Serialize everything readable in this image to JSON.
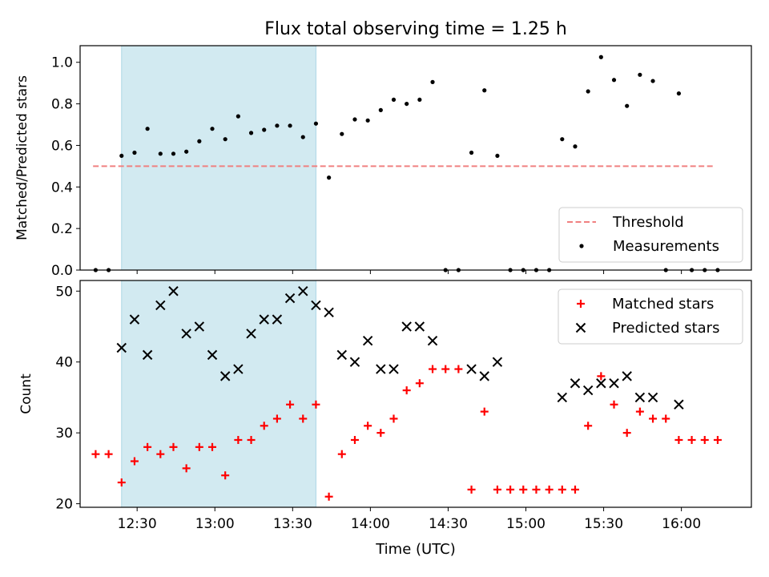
{
  "title": "Flux total observing time = 1.25 h",
  "xlabel": "Time (UTC)",
  "colors": {
    "shade": "#add8e6",
    "threshold": "#f08080",
    "matched": "#ff0000",
    "predicted": "#000000",
    "measurement": "#000000"
  },
  "chart_data": [
    {
      "type": "scatter",
      "ylabel": "Matched/Predicted stars",
      "ylim": [
        0,
        1.08
      ],
      "yticks": [
        "0.0",
        "0.2",
        "0.4",
        "0.6",
        "0.8",
        "1.0"
      ],
      "ytick_values": [
        0,
        0.2,
        0.4,
        0.6,
        0.8,
        1.0
      ],
      "xticks": [
        "12:30",
        "13:00",
        "13:30",
        "14:00",
        "14:30",
        "15:00",
        "15:30",
        "16:00"
      ],
      "xtick_values": [
        "12:30",
        "13:00",
        "13:30",
        "14:00",
        "14:30",
        "15:00",
        "15:30",
        "16:00"
      ],
      "xlim": [
        "12:08",
        "16:27"
      ],
      "shaded_region": [
        "12:24",
        "13:39"
      ],
      "threshold": {
        "name": "Threshold",
        "value": 0.5,
        "x_range": [
          "12:13",
          "16:13"
        ]
      },
      "legend": {
        "placement": "lower-right",
        "entries": [
          "Threshold",
          "Measurements"
        ]
      },
      "series": [
        {
          "name": "Measurements",
          "marker": "dot",
          "points": [
            [
              "12:14",
              0.0
            ],
            [
              "12:19",
              0.0
            ],
            [
              "12:24",
              0.55
            ],
            [
              "12:29",
              0.565
            ],
            [
              "12:34",
              0.68
            ],
            [
              "12:39",
              0.56
            ],
            [
              "12:44",
              0.56
            ],
            [
              "12:49",
              0.57
            ],
            [
              "12:54",
              0.62
            ],
            [
              "12:59",
              0.68
            ],
            [
              "13:04",
              0.63
            ],
            [
              "13:09",
              0.74
            ],
            [
              "13:14",
              0.66
            ],
            [
              "13:19",
              0.675
            ],
            [
              "13:24",
              0.695
            ],
            [
              "13:29",
              0.695
            ],
            [
              "13:34",
              0.64
            ],
            [
              "13:39",
              0.705
            ],
            [
              "13:44",
              0.445
            ],
            [
              "13:49",
              0.655
            ],
            [
              "13:54",
              0.725
            ],
            [
              "13:59",
              0.72
            ],
            [
              "14:04",
              0.77
            ],
            [
              "14:09",
              0.82
            ],
            [
              "14:14",
              0.8
            ],
            [
              "14:19",
              0.82
            ],
            [
              "14:24",
              0.905
            ],
            [
              "14:29",
              0.0
            ],
            [
              "14:34",
              0.0
            ],
            [
              "14:39",
              0.565
            ],
            [
              "14:44",
              0.865
            ],
            [
              "14:49",
              0.55
            ],
            [
              "14:54",
              0.0
            ],
            [
              "14:59",
              0.0
            ],
            [
              "15:04",
              0.0
            ],
            [
              "15:09",
              0.0
            ],
            [
              "15:14",
              0.63
            ],
            [
              "15:19",
              0.595
            ],
            [
              "15:24",
              0.86
            ],
            [
              "15:29",
              1.025
            ],
            [
              "15:34",
              0.915
            ],
            [
              "15:39",
              0.79
            ],
            [
              "15:44",
              0.94
            ],
            [
              "15:49",
              0.91
            ],
            [
              "15:54",
              0.0
            ],
            [
              "15:59",
              0.85
            ],
            [
              "16:04",
              0.0
            ],
            [
              "16:09",
              0.0
            ],
            [
              "16:14",
              0.0
            ]
          ]
        }
      ]
    },
    {
      "type": "scatter",
      "ylabel": "Count",
      "ylim": [
        19.5,
        51.5
      ],
      "yticks": [
        "20",
        "30",
        "40",
        "50"
      ],
      "ytick_values": [
        20,
        30,
        40,
        50
      ],
      "xticks": [
        "12:30",
        "13:00",
        "13:30",
        "14:00",
        "14:30",
        "15:00",
        "15:30",
        "16:00"
      ],
      "xtick_values": [
        "12:30",
        "13:00",
        "13:30",
        "14:00",
        "14:30",
        "15:00",
        "15:30",
        "16:00"
      ],
      "xlim": [
        "12:08",
        "16:27"
      ],
      "shaded_region": [
        "12:24",
        "13:39"
      ],
      "legend": {
        "placement": "top-right",
        "entries": [
          "Matched stars",
          "Predicted stars"
        ]
      },
      "series": [
        {
          "name": "Matched stars",
          "marker": "plus",
          "points": [
            [
              "12:14",
              27
            ],
            [
              "12:19",
              27
            ],
            [
              "12:24",
              23
            ],
            [
              "12:29",
              26
            ],
            [
              "12:34",
              28
            ],
            [
              "12:39",
              27
            ],
            [
              "12:44",
              28
            ],
            [
              "12:49",
              25
            ],
            [
              "12:54",
              28
            ],
            [
              "12:59",
              28
            ],
            [
              "13:04",
              24
            ],
            [
              "13:09",
              29
            ],
            [
              "13:14",
              29
            ],
            [
              "13:19",
              31
            ],
            [
              "13:24",
              32
            ],
            [
              "13:29",
              34
            ],
            [
              "13:34",
              32
            ],
            [
              "13:39",
              34
            ],
            [
              "13:44",
              21
            ],
            [
              "13:49",
              27
            ],
            [
              "13:54",
              29
            ],
            [
              "13:59",
              31
            ],
            [
              "14:04",
              30
            ],
            [
              "14:09",
              32
            ],
            [
              "14:14",
              36
            ],
            [
              "14:19",
              37
            ],
            [
              "14:24",
              39
            ],
            [
              "14:29",
              39
            ],
            [
              "14:34",
              39
            ],
            [
              "14:39",
              22
            ],
            [
              "14:44",
              33
            ],
            [
              "14:49",
              22
            ],
            [
              "14:54",
              22
            ],
            [
              "14:59",
              22
            ],
            [
              "15:04",
              22
            ],
            [
              "15:09",
              22
            ],
            [
              "15:14",
              22
            ],
            [
              "15:19",
              22
            ],
            [
              "15:24",
              31
            ],
            [
              "15:29",
              38
            ],
            [
              "15:34",
              34
            ],
            [
              "15:39",
              30
            ],
            [
              "15:44",
              33
            ],
            [
              "15:49",
              32
            ],
            [
              "15:54",
              32
            ],
            [
              "15:59",
              29
            ],
            [
              "16:04",
              29
            ],
            [
              "16:09",
              29
            ],
            [
              "16:14",
              29
            ]
          ]
        },
        {
          "name": "Predicted stars",
          "marker": "x",
          "points": [
            [
              "12:24",
              42
            ],
            [
              "12:29",
              46
            ],
            [
              "12:34",
              41
            ],
            [
              "12:39",
              48
            ],
            [
              "12:44",
              50
            ],
            [
              "12:49",
              44
            ],
            [
              "12:54",
              45
            ],
            [
              "12:59",
              41
            ],
            [
              "13:04",
              38
            ],
            [
              "13:09",
              39
            ],
            [
              "13:14",
              44
            ],
            [
              "13:19",
              46
            ],
            [
              "13:24",
              46
            ],
            [
              "13:29",
              49
            ],
            [
              "13:34",
              50
            ],
            [
              "13:39",
              48
            ],
            [
              "13:44",
              47
            ],
            [
              "13:49",
              41
            ],
            [
              "13:54",
              40
            ],
            [
              "13:59",
              43
            ],
            [
              "14:04",
              39
            ],
            [
              "14:09",
              39
            ],
            [
              "14:14",
              45
            ],
            [
              "14:19",
              45
            ],
            [
              "14:24",
              43
            ],
            [
              "14:39",
              39
            ],
            [
              "14:44",
              38
            ],
            [
              "14:49",
              40
            ],
            [
              "15:14",
              35
            ],
            [
              "15:19",
              37
            ],
            [
              "15:24",
              36
            ],
            [
              "15:29",
              37
            ],
            [
              "15:34",
              37
            ],
            [
              "15:39",
              38
            ],
            [
              "15:44",
              35
            ],
            [
              "15:49",
              35
            ],
            [
              "15:59",
              34
            ]
          ]
        }
      ]
    }
  ]
}
